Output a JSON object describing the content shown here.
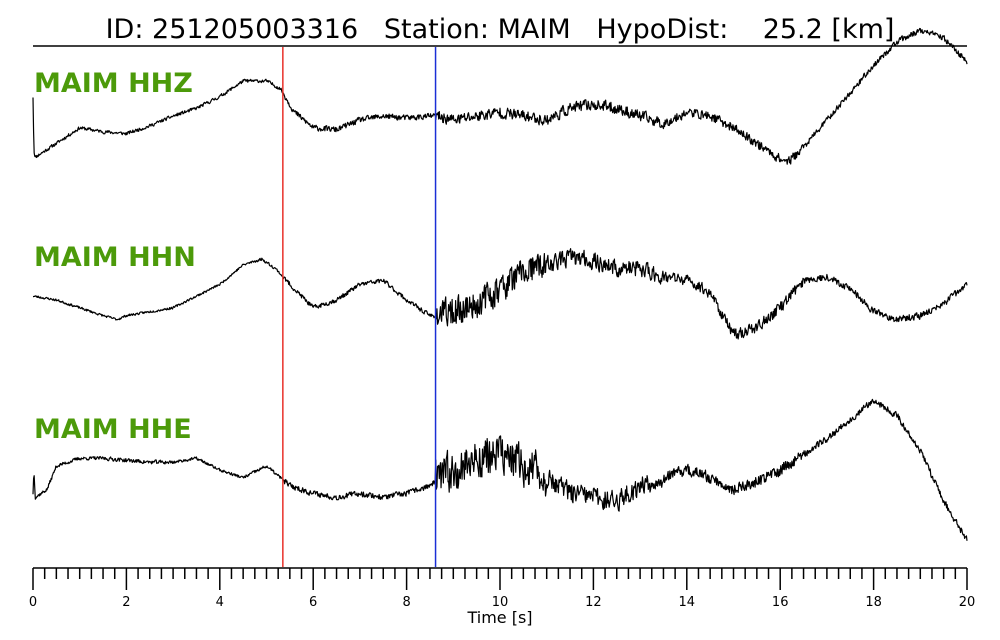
{
  "title": {
    "id_label": "ID:",
    "id_value": "251205003316",
    "station_label": "Station:",
    "station_value": "MAIM",
    "hypodist_label": "HypoDist:",
    "hypodist_value": "25.2",
    "hypodist_unit": "[km]"
  },
  "colors": {
    "trace": "#000000",
    "channel_label": "#4c9a0a",
    "p_pick": "#e8312a",
    "s_pick": "#1a2ed6",
    "frame": "#000000"
  },
  "chart_data": {
    "type": "line",
    "xlabel": "Time [s]",
    "xlim": [
      0,
      20
    ],
    "x_major_ticks": [
      0,
      2,
      4,
      6,
      8,
      10,
      12,
      14,
      16,
      18,
      20
    ],
    "x_minor_step": 0.25,
    "grid": false,
    "picks": [
      {
        "phase": "P",
        "time": 5.35,
        "color": "#e8312a"
      },
      {
        "phase": "S",
        "time": 8.62,
        "color": "#1a2ed6"
      }
    ],
    "series": [
      {
        "name": "MAIM HHZ",
        "noise": [
          0.06,
          0.06,
          0.06,
          0.06,
          0.1,
          0.2,
          0.2,
          0.16,
          0.1
        ],
        "seed": 11,
        "x": [
          0,
          0.02,
          0.05,
          0.5,
          1,
          1.5,
          2,
          2.5,
          3,
          3.5,
          4,
          4.5,
          5,
          5.3,
          5.6,
          6,
          6.5,
          7,
          7.5,
          8,
          8.5,
          8.62,
          9,
          9.5,
          10,
          10.5,
          11,
          11.5,
          12,
          12.5,
          13,
          13.5,
          14,
          14.5,
          15,
          15.5,
          16,
          16.2,
          16.5,
          17,
          17.5,
          18,
          18.5,
          19,
          19.5,
          20
        ],
        "y": [
          0.6,
          -0.8,
          -0.95,
          -0.6,
          -0.2,
          -0.3,
          -0.35,
          -0.15,
          0.1,
          0.3,
          0.6,
          1.0,
          1.0,
          0.8,
          0.2,
          -0.2,
          -0.25,
          0.0,
          0.1,
          0.05,
          0.1,
          0.1,
          0.0,
          0.1,
          0.2,
          0.1,
          0.0,
          0.3,
          0.4,
          0.3,
          0.1,
          -0.1,
          0.2,
          0.1,
          -0.2,
          -0.6,
          -1.0,
          -1.05,
          -0.7,
          0.0,
          0.7,
          1.4,
          2.0,
          2.3,
          2.1,
          1.5
        ]
      },
      {
        "name": "MAIM HHN",
        "noise": [
          0.04,
          0.04,
          0.04,
          0.05,
          0.08,
          0.5,
          0.3,
          0.2,
          0.12
        ],
        "seed": 23,
        "x": [
          0,
          0.5,
          1,
          1.5,
          1.8,
          2,
          2.5,
          3,
          3.5,
          4,
          4.5,
          4.9,
          5.2,
          5.5,
          6,
          6.5,
          7,
          7.5,
          8,
          8.5,
          8.62,
          9,
          9.5,
          10,
          10.5,
          11,
          11.5,
          12,
          12.5,
          13,
          13.5,
          14,
          14.5,
          15,
          15.5,
          16,
          16.5,
          17,
          17.5,
          18,
          18.5,
          19,
          19.5,
          20
        ],
        "y": [
          0.1,
          0.0,
          -0.2,
          -0.4,
          -0.5,
          -0.4,
          -0.3,
          -0.2,
          0.1,
          0.4,
          0.9,
          1.05,
          0.8,
          0.4,
          -0.2,
          0.0,
          0.4,
          0.5,
          0.0,
          -0.4,
          -0.4,
          -0.3,
          -0.1,
          0.3,
          0.7,
          0.9,
          1.1,
          1.0,
          0.8,
          0.8,
          0.6,
          0.5,
          0.2,
          -0.9,
          -0.7,
          -0.2,
          0.5,
          0.6,
          0.3,
          -0.3,
          -0.5,
          -0.4,
          -0.1,
          0.4
        ]
      },
      {
        "name": "MAIM HHE",
        "noise": [
          0.06,
          0.07,
          0.05,
          0.06,
          0.1,
          0.7,
          0.35,
          0.2,
          0.12
        ],
        "seed": 37,
        "x": [
          0,
          0.02,
          0.05,
          0.3,
          0.5,
          1,
          1.5,
          2,
          2.5,
          3,
          3.5,
          4,
          4.5,
          5,
          5.5,
          6,
          6.5,
          7,
          7.5,
          8,
          8.5,
          8.62,
          9,
          9.5,
          10,
          10.5,
          11,
          11.5,
          12,
          12.5,
          13,
          13.5,
          14,
          14.5,
          15,
          15.5,
          16,
          16.5,
          17,
          17.5,
          18,
          18.5,
          19,
          19.5,
          20
        ],
        "y": [
          -0.6,
          0.0,
          -0.7,
          -0.5,
          0.1,
          0.3,
          0.3,
          0.25,
          0.2,
          0.2,
          0.3,
          0.0,
          -0.2,
          0.1,
          -0.4,
          -0.6,
          -0.7,
          -0.6,
          -0.7,
          -0.6,
          -0.4,
          -0.3,
          0.0,
          0.3,
          0.4,
          0.1,
          -0.2,
          -0.6,
          -0.7,
          -0.8,
          -0.4,
          -0.2,
          0.0,
          -0.2,
          -0.5,
          -0.3,
          0.0,
          0.4,
          0.8,
          1.3,
          1.8,
          1.4,
          0.5,
          -0.8,
          -1.8
        ]
      }
    ]
  }
}
